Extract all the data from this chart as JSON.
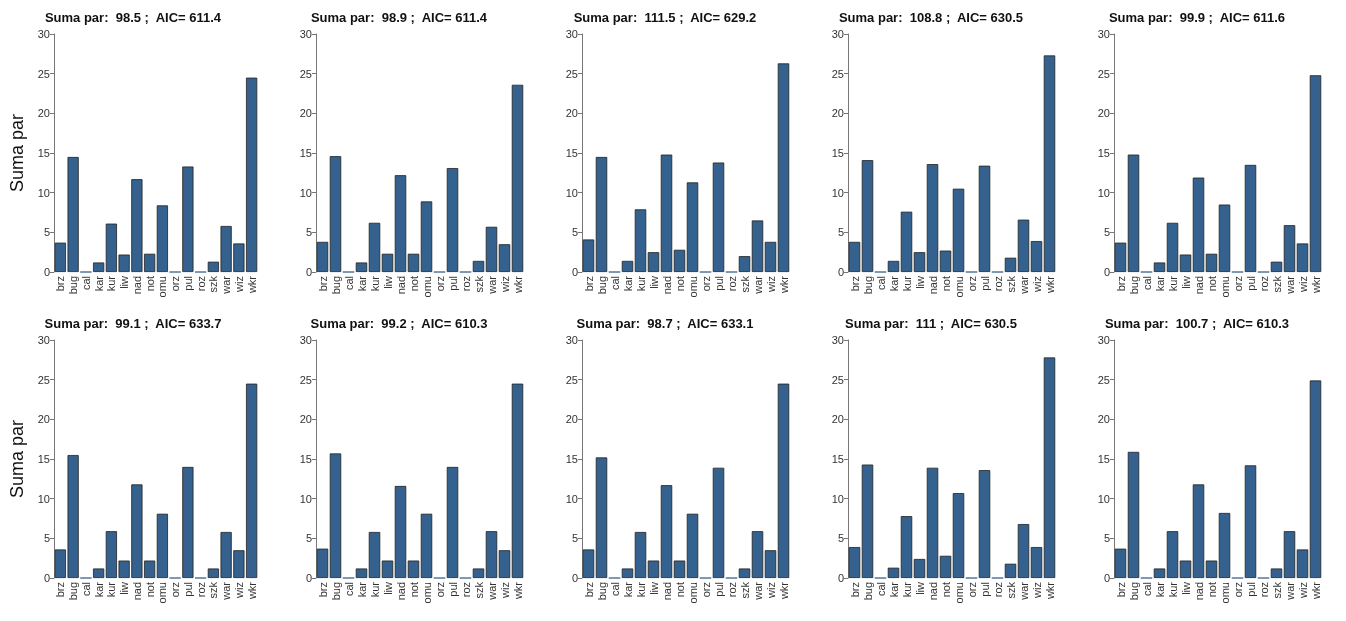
{
  "chart_data": [
    {
      "type": "bar",
      "title": "Suma par:  98.5 ;  AIC= 611.4",
      "ylabel": "Suma par",
      "categories": [
        "brz",
        "bug",
        "cal",
        "kar",
        "kur",
        "liw",
        "nad",
        "not",
        "omu",
        "orz",
        "pul",
        "roz",
        "szk",
        "war",
        "wiz",
        "wkr"
      ],
      "color": "#34618d",
      "ylim": [
        0,
        30
      ],
      "yticks": [
        0,
        5,
        10,
        15,
        20,
        25,
        30
      ],
      "grid": false,
      "values": [
        3.7,
        14.5,
        0,
        1.2,
        6.1,
        2.2,
        11.7,
        2.3,
        8.4,
        0,
        13.3,
        0,
        1.3,
        5.8,
        3.6,
        24.5
      ]
    },
    {
      "type": "bar",
      "title": "Suma par:  98.9 ;  AIC= 611.4",
      "categories": [
        "brz",
        "bug",
        "cal",
        "kar",
        "kur",
        "liw",
        "nad",
        "not",
        "omu",
        "orz",
        "pul",
        "roz",
        "szk",
        "war",
        "wiz",
        "wkr"
      ],
      "color": "#34618d",
      "ylim": [
        0,
        30
      ],
      "yticks": [
        0,
        5,
        10,
        15,
        20,
        25,
        30
      ],
      "grid": false,
      "values": [
        3.8,
        14.6,
        0,
        1.2,
        6.2,
        2.3,
        12.2,
        2.3,
        8.9,
        0,
        13.1,
        0,
        1.4,
        5.7,
        3.5,
        23.6
      ]
    },
    {
      "type": "bar",
      "title": "Suma par:  111.5 ;  AIC= 629.2",
      "categories": [
        "brz",
        "bug",
        "cal",
        "kar",
        "kur",
        "liw",
        "nad",
        "not",
        "omu",
        "orz",
        "pul",
        "roz",
        "szk",
        "war",
        "wiz",
        "wkr"
      ],
      "color": "#34618d",
      "ylim": [
        0,
        30
      ],
      "yticks": [
        0,
        5,
        10,
        15,
        20,
        25,
        30
      ],
      "grid": false,
      "values": [
        4.1,
        14.5,
        0,
        1.4,
        7.9,
        2.5,
        14.8,
        2.8,
        11.3,
        0,
        13.8,
        0,
        2.0,
        6.5,
        3.8,
        26.3
      ]
    },
    {
      "type": "bar",
      "title": "Suma par:  108.8 ;  AIC= 630.5",
      "categories": [
        "brz",
        "bug",
        "cal",
        "kar",
        "kur",
        "liw",
        "nad",
        "not",
        "omu",
        "orz",
        "pul",
        "roz",
        "szk",
        "war",
        "wiz",
        "wkr"
      ],
      "color": "#34618d",
      "ylim": [
        0,
        30
      ],
      "yticks": [
        0,
        5,
        10,
        15,
        20,
        25,
        30
      ],
      "grid": false,
      "values": [
        3.8,
        14.1,
        0,
        1.4,
        7.6,
        2.5,
        13.6,
        2.7,
        10.5,
        0,
        13.4,
        0,
        1.8,
        6.6,
        3.9,
        27.3
      ]
    },
    {
      "type": "bar",
      "title": "Suma par:  99.9 ;  AIC= 611.6",
      "categories": [
        "brz",
        "bug",
        "cal",
        "kar",
        "kur",
        "liw",
        "nad",
        "not",
        "omu",
        "orz",
        "pul",
        "roz",
        "szk",
        "war",
        "wiz",
        "wkr"
      ],
      "color": "#34618d",
      "ylim": [
        0,
        30
      ],
      "yticks": [
        0,
        5,
        10,
        15,
        20,
        25,
        30
      ],
      "grid": false,
      "values": [
        3.7,
        14.8,
        0,
        1.2,
        6.2,
        2.2,
        11.9,
        2.3,
        8.5,
        0,
        13.5,
        0,
        1.3,
        5.9,
        3.6,
        24.8
      ]
    },
    {
      "type": "bar",
      "title": "Suma par:  99.1 ;  AIC= 633.7",
      "ylabel": "Suma par",
      "categories": [
        "brz",
        "bug",
        "cal",
        "kar",
        "kur",
        "liw",
        "nad",
        "not",
        "omu",
        "orz",
        "pul",
        "roz",
        "szk",
        "war",
        "wiz",
        "wkr"
      ],
      "color": "#34618d",
      "ylim": [
        0,
        30
      ],
      "yticks": [
        0,
        5,
        10,
        15,
        20,
        25,
        30
      ],
      "grid": false,
      "values": [
        3.6,
        15.5,
        0,
        1.2,
        5.9,
        2.2,
        11.8,
        2.2,
        8.1,
        0,
        14.0,
        0,
        1.2,
        5.8,
        3.5,
        24.5
      ]
    },
    {
      "type": "bar",
      "title": "Suma par:  99.2 ;  AIC= 610.3",
      "categories": [
        "brz",
        "bug",
        "cal",
        "kar",
        "kur",
        "liw",
        "nad",
        "not",
        "omu",
        "orz",
        "pul",
        "roz",
        "szk",
        "war",
        "wiz",
        "wkr"
      ],
      "color": "#34618d",
      "ylim": [
        0,
        30
      ],
      "yticks": [
        0,
        5,
        10,
        15,
        20,
        25,
        30
      ],
      "grid": false,
      "values": [
        3.7,
        15.7,
        0,
        1.2,
        5.8,
        2.2,
        11.6,
        2.2,
        8.1,
        0,
        14.0,
        0,
        1.2,
        5.9,
        3.5,
        24.5
      ]
    },
    {
      "type": "bar",
      "title": "Suma par:  98.7 ;  AIC= 633.1",
      "categories": [
        "brz",
        "bug",
        "cal",
        "kar",
        "kur",
        "liw",
        "nad",
        "not",
        "omu",
        "orz",
        "pul",
        "roz",
        "szk",
        "war",
        "wiz",
        "wkr"
      ],
      "color": "#34618d",
      "ylim": [
        0,
        30
      ],
      "yticks": [
        0,
        5,
        10,
        15,
        20,
        25,
        30
      ],
      "grid": false,
      "values": [
        3.6,
        15.2,
        0,
        1.2,
        5.8,
        2.2,
        11.7,
        2.2,
        8.1,
        0,
        13.9,
        0,
        1.2,
        5.9,
        3.5,
        24.5
      ]
    },
    {
      "type": "bar",
      "title": "Suma par:  111 ;  AIC= 630.5",
      "categories": [
        "brz",
        "bug",
        "cal",
        "kar",
        "kur",
        "liw",
        "nad",
        "not",
        "omu",
        "orz",
        "pul",
        "roz",
        "szk",
        "war",
        "wiz",
        "wkr"
      ],
      "color": "#34618d",
      "ylim": [
        0,
        30
      ],
      "yticks": [
        0,
        5,
        10,
        15,
        20,
        25,
        30
      ],
      "grid": false,
      "values": [
        3.9,
        14.3,
        0,
        1.3,
        7.8,
        2.4,
        13.9,
        2.8,
        10.7,
        0,
        13.6,
        0,
        1.8,
        6.8,
        3.9,
        27.8
      ]
    },
    {
      "type": "bar",
      "title": "Suma par:  100.7 ;  AIC= 610.3",
      "categories": [
        "brz",
        "bug",
        "cal",
        "kar",
        "kur",
        "liw",
        "nad",
        "not",
        "omu",
        "orz",
        "pul",
        "roz",
        "szk",
        "war",
        "wiz",
        "wkr"
      ],
      "color": "#34618d",
      "ylim": [
        0,
        30
      ],
      "yticks": [
        0,
        5,
        10,
        15,
        20,
        25,
        30
      ],
      "grid": false,
      "values": [
        3.7,
        15.9,
        0,
        1.2,
        5.9,
        2.2,
        11.8,
        2.2,
        8.2,
        0,
        14.2,
        0,
        1.2,
        5.9,
        3.6,
        24.9
      ]
    }
  ]
}
